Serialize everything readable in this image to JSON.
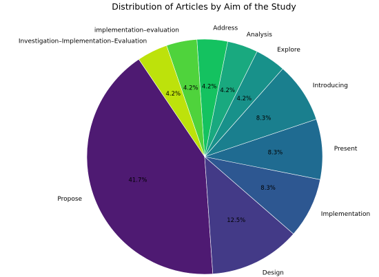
{
  "chart_data": {
    "type": "pie",
    "title": "Distribution of Articles by Aim of the Study",
    "slices": [
      {
        "label": "Propose",
        "value": 41.7,
        "pct_label": "41.7%",
        "color": "#4e1a72"
      },
      {
        "label": "Design",
        "value": 12.5,
        "pct_label": "12.5%",
        "color": "#433a87"
      },
      {
        "label": "Implementation",
        "value": 8.3,
        "pct_label": "8.3%",
        "color": "#2d5791"
      },
      {
        "label": "Present",
        "value": 8.3,
        "pct_label": "8.3%",
        "color": "#1f6b91"
      },
      {
        "label": "Introducing",
        "value": 8.3,
        "pct_label": "8.3%",
        "color": "#1a7f8e"
      },
      {
        "label": "Explore",
        "value": 4.2,
        "pct_label": "4.2%",
        "color": "#18918a"
      },
      {
        "label": "Analysis",
        "value": 4.2,
        "pct_label": "4.2%",
        "color": "#19a97f"
      },
      {
        "label": "Address",
        "value": 4.2,
        "pct_label": "4.2%",
        "color": "#14c260"
      },
      {
        "label": "implementation–evaluation",
        "value": 4.2,
        "pct_label": "4.2%",
        "color": "#4fd33c"
      },
      {
        "label": "Investigation–Implementation–Evaluation",
        "value": 4.2,
        "pct_label": "4.2%",
        "color": "#bde20b"
      }
    ]
  }
}
